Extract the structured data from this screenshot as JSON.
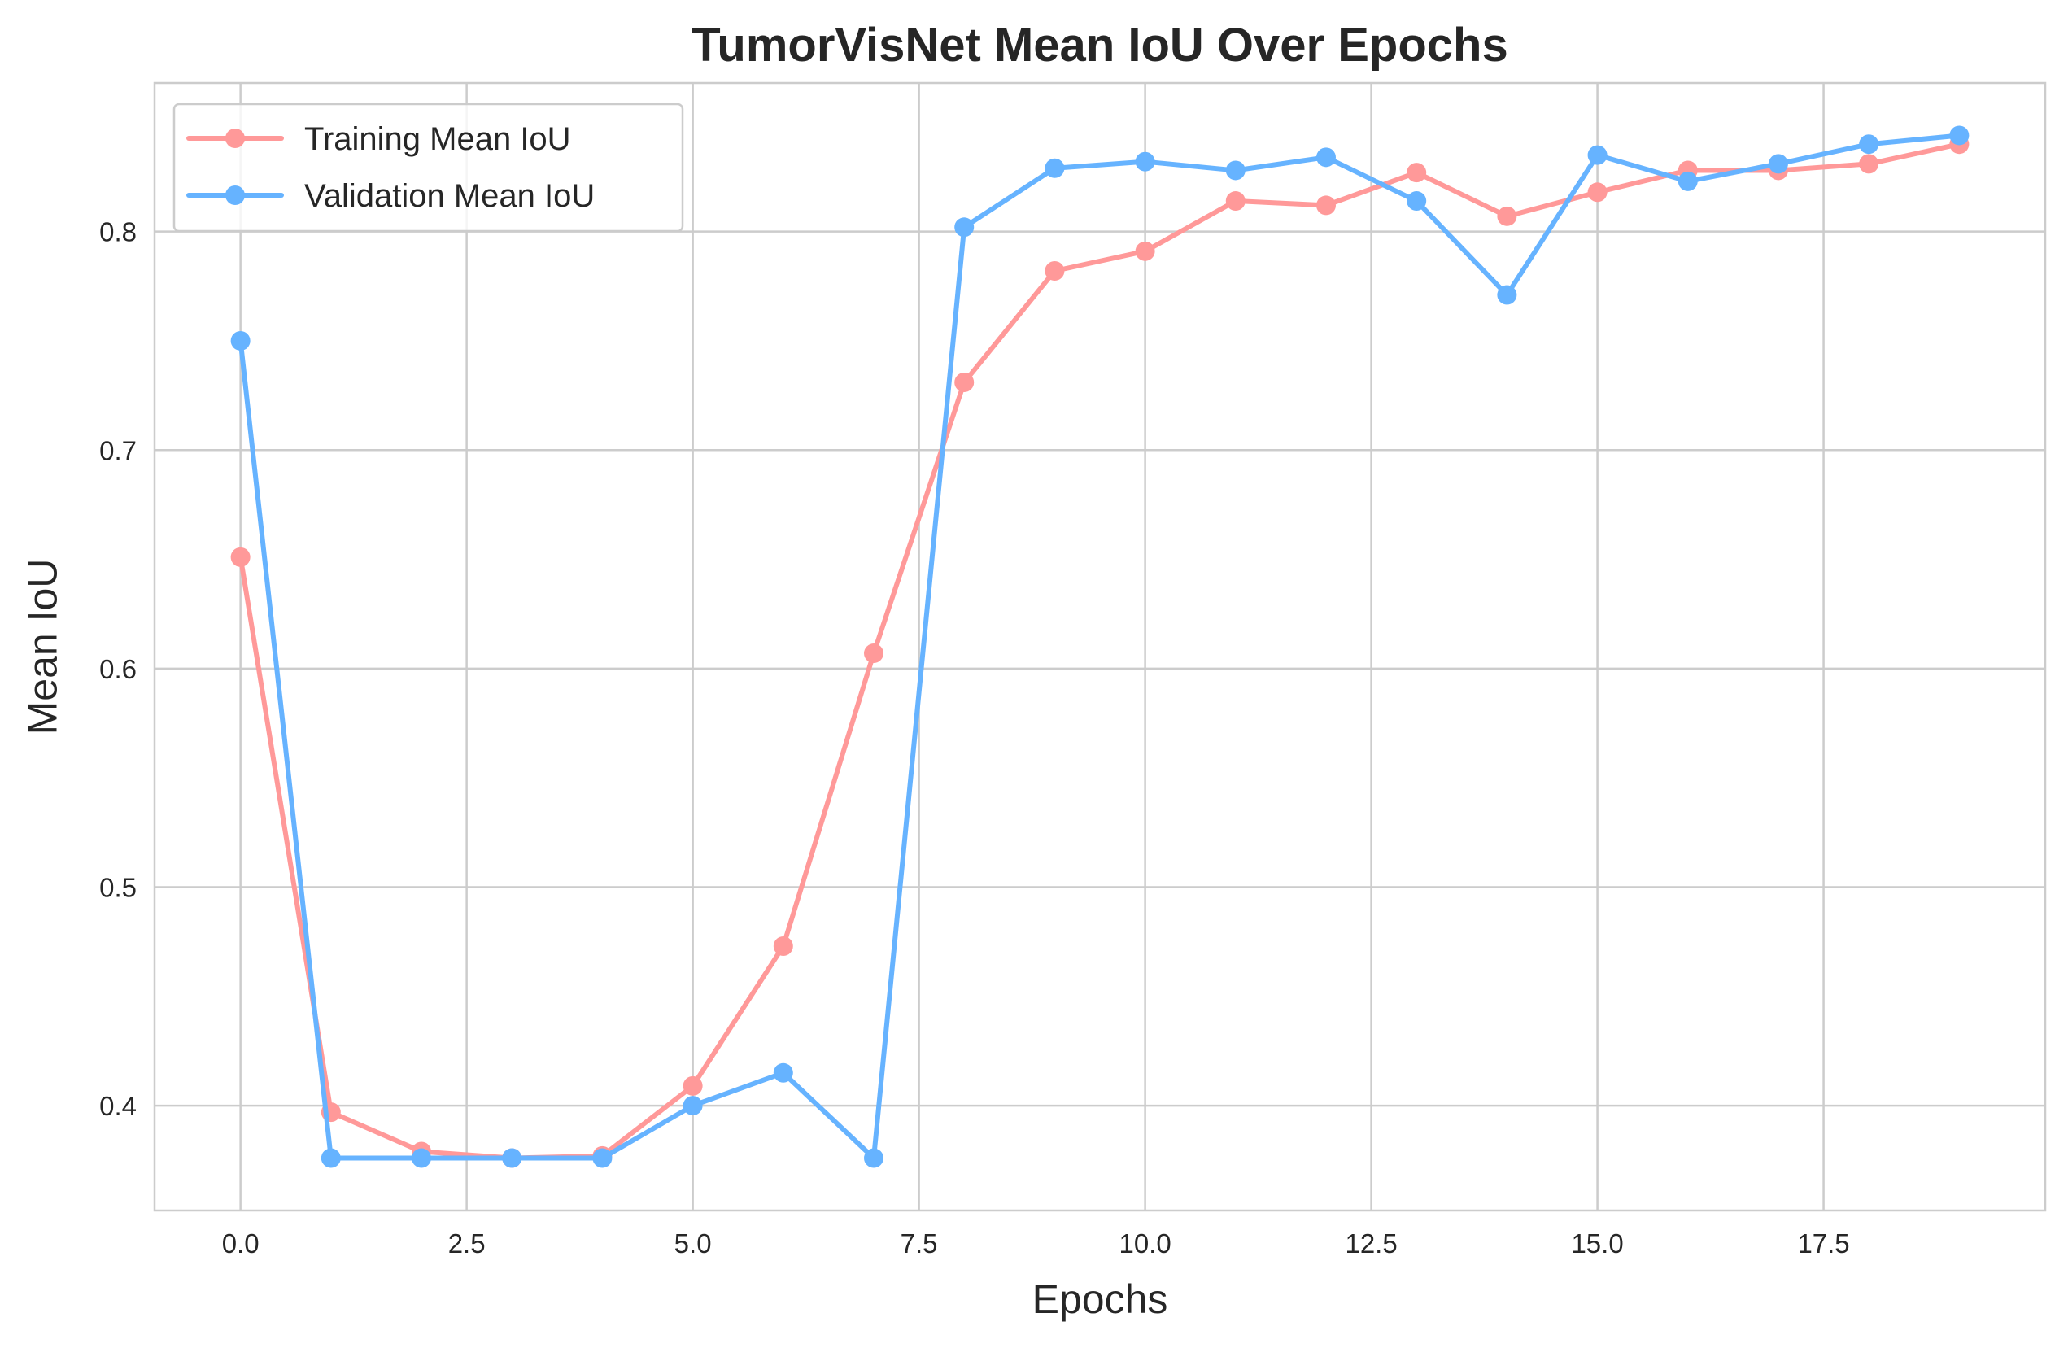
{
  "chart_data": {
    "type": "line",
    "title": "TumorVisNet Mean IoU Over Epochs",
    "xlabel": "Epochs",
    "ylabel": "Mean IoU",
    "xlim": [
      -0.95,
      19.95
    ],
    "ylim": [
      0.352,
      0.868
    ],
    "x_ticks": [
      0.0,
      2.5,
      5.0,
      7.5,
      10.0,
      12.5,
      15.0,
      17.5
    ],
    "x_tick_labels": [
      "0.0",
      "2.5",
      "5.0",
      "7.5",
      "10.0",
      "12.5",
      "15.0",
      "17.5"
    ],
    "y_ticks": [
      0.4,
      0.5,
      0.6,
      0.7,
      0.8
    ],
    "y_tick_labels": [
      "0.4",
      "0.5",
      "0.6",
      "0.7",
      "0.8"
    ],
    "grid": true,
    "legend_position": "upper left",
    "x": [
      0,
      1,
      2,
      3,
      4,
      5,
      6,
      7,
      8,
      9,
      10,
      11,
      12,
      13,
      14,
      15,
      16,
      17,
      18,
      19
    ],
    "series": [
      {
        "name": "Training Mean IoU",
        "color": "#ff9999",
        "values": [
          0.651,
          0.397,
          0.379,
          0.376,
          0.377,
          0.409,
          0.473,
          0.607,
          0.731,
          0.782,
          0.791,
          0.814,
          0.812,
          0.827,
          0.807,
          0.818,
          0.828,
          0.828,
          0.831,
          0.84
        ]
      },
      {
        "name": "Validation Mean IoU",
        "color": "#66b3ff",
        "values": [
          0.75,
          0.376,
          0.376,
          0.376,
          0.376,
          0.4,
          0.415,
          0.376,
          0.802,
          0.829,
          0.832,
          0.828,
          0.834,
          0.814,
          0.771,
          0.835,
          0.823,
          0.831,
          0.84,
          0.844
        ]
      }
    ]
  }
}
